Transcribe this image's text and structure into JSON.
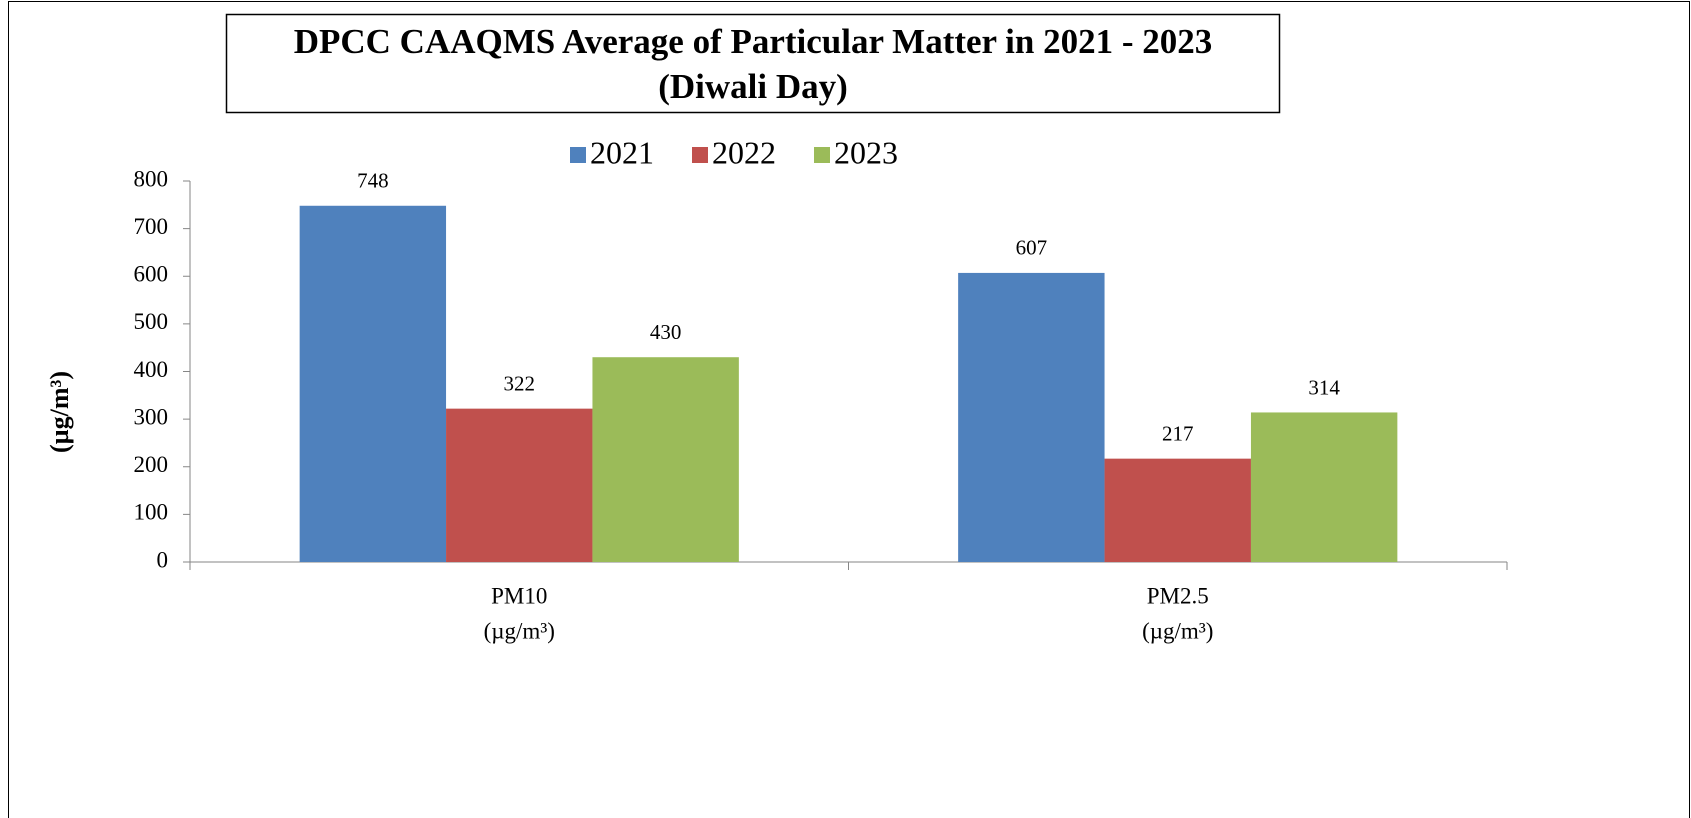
{
  "chart_data": {
    "type": "bar",
    "title": "DPCC CAAQMS Average of Particular Matter in 2021 - 2023",
    "subtitle": "(Diwali Day)",
    "y_label": "(µg/m³)",
    "categories": [
      "PM10",
      "PM2.5"
    ],
    "category_units": [
      "(µg/m³)",
      "(µg/m³)"
    ],
    "series": [
      {
        "name": "2021",
        "color": "#4f81bd",
        "values": [
          748,
          607
        ]
      },
      {
        "name": "2022",
        "color": "#c0504d",
        "values": [
          322,
          217
        ]
      },
      {
        "name": "2023",
        "color": "#9bbb59",
        "values": [
          430,
          314
        ]
      }
    ],
    "ylim": [
      0,
      800
    ],
    "yticks": [
      0,
      100,
      200,
      300,
      400,
      500,
      600,
      700,
      800
    ],
    "grid": false,
    "legend": "top"
  }
}
